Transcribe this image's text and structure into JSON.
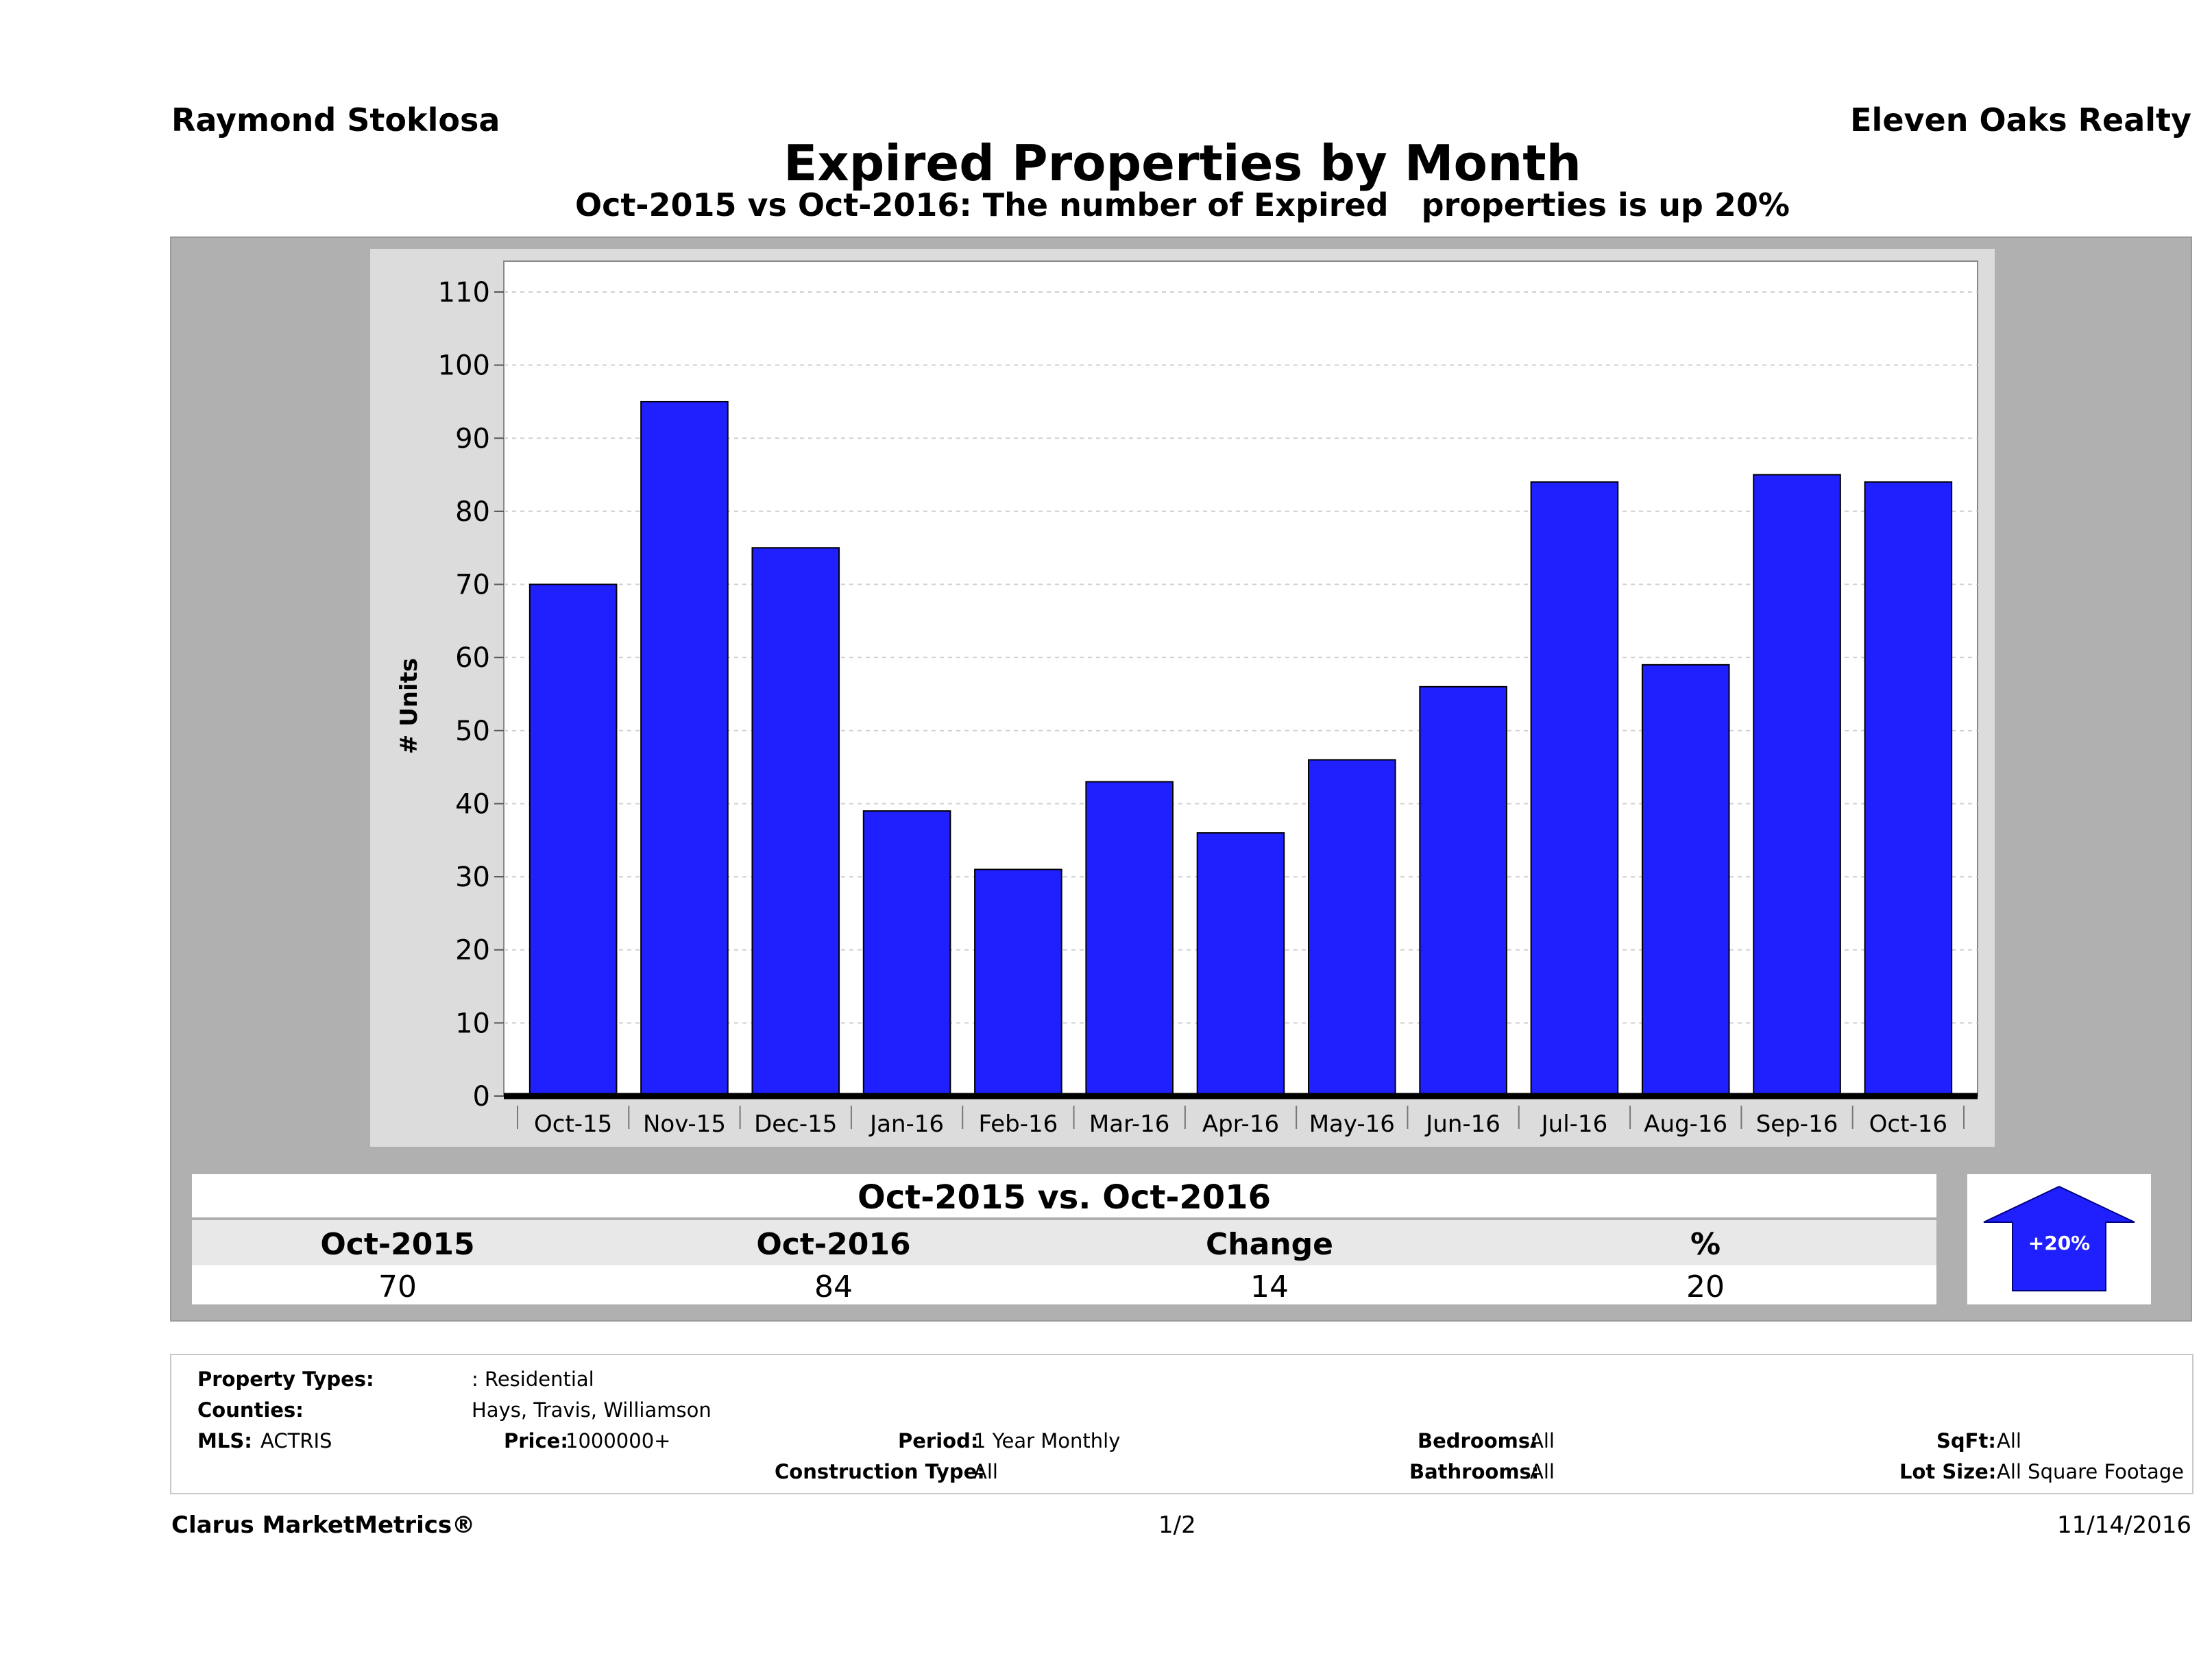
{
  "header": {
    "agent": "Raymond Stoklosa",
    "brokerage": "Eleven Oaks Realty",
    "title": "Expired Properties by Month",
    "subtitle": "Oct-2015 vs Oct-2016: The number of Expired   properties is up 20%"
  },
  "chart_data": {
    "type": "bar",
    "title": "Expired Properties by Month",
    "ylabel": "# Units",
    "xlabel": "",
    "ylim": [
      0,
      110
    ],
    "yticks": [
      0,
      10,
      20,
      30,
      40,
      50,
      60,
      70,
      80,
      90,
      100,
      110
    ],
    "categories": [
      "Oct-15",
      "Nov-15",
      "Dec-15",
      "Jan-16",
      "Feb-16",
      "Mar-16",
      "Apr-16",
      "May-16",
      "Jun-16",
      "Jul-16",
      "Aug-16",
      "Sep-16",
      "Oct-16"
    ],
    "values": [
      70,
      95,
      75,
      39,
      31,
      43,
      36,
      46,
      56,
      84,
      59,
      85,
      84
    ],
    "bar_color": "#2020ff",
    "grid": true
  },
  "summary": {
    "title": "Oct-2015 vs. Oct-2016",
    "headers": [
      "Oct-2015",
      "Oct-2016",
      "Change",
      "%"
    ],
    "values": [
      "70",
      "84",
      "14",
      "20"
    ],
    "badge": "+20%",
    "badge_direction": "up"
  },
  "criteria": {
    "property_types_label": "Property Types:",
    "property_types_value": ": Residential",
    "counties_label": "Counties:",
    "counties_value": "Hays, Travis, Williamson",
    "mls_label": "MLS:",
    "mls_value": "ACTRIS",
    "price_label": "Price:",
    "price_value": "1000000+",
    "period_label": "Period:",
    "period_value": "1 Year Monthly",
    "construction_label": "Construction Type:",
    "construction_value": "All",
    "bedrooms_label": "Bedrooms:",
    "bedrooms_value": "All",
    "bathrooms_label": "Bathrooms:",
    "bathrooms_value": "All",
    "sqft_label": "SqFt:",
    "sqft_value": "All",
    "lotsize_label": "Lot Size:",
    "lotsize_value": "All Square Footage"
  },
  "footer": {
    "brand": "Clarus MarketMetrics®",
    "page": "1/2",
    "date": "11/14/2016"
  }
}
